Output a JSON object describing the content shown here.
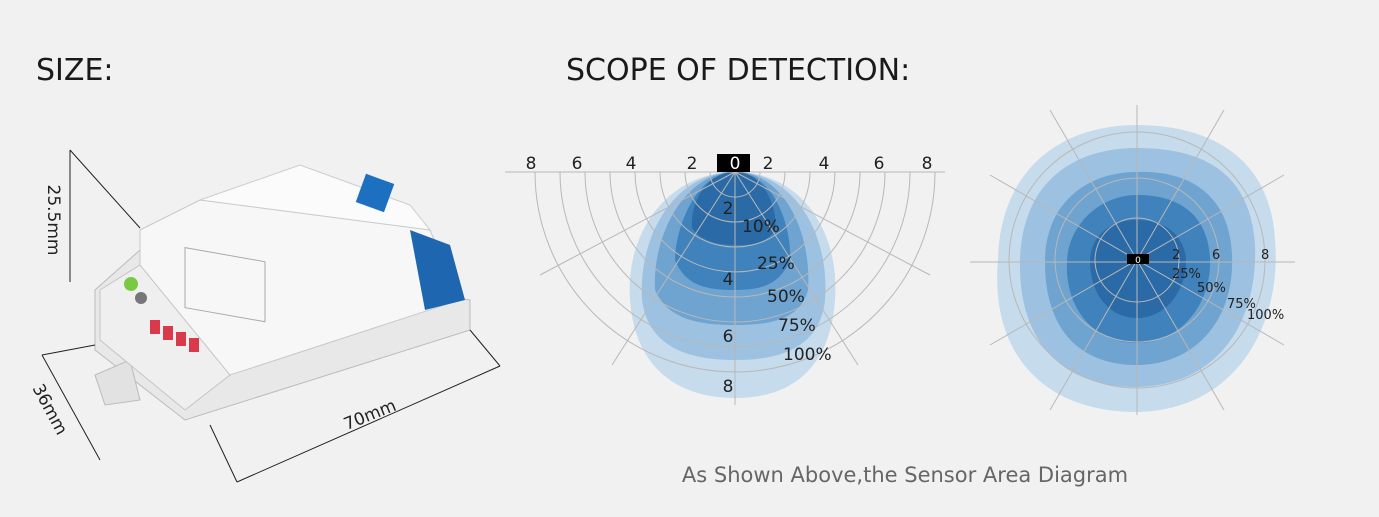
{
  "header": {
    "size_title": "SIZE:",
    "scope_title": "SCOPE OF DETECTION:"
  },
  "dimensions": {
    "height": "25.5mm",
    "width": "36mm",
    "length": "70mm"
  },
  "side_view": {
    "top_scale": [
      "8",
      "6",
      "4",
      "2",
      "0",
      "2",
      "4",
      "6",
      "8"
    ],
    "depth_scale": [
      "2",
      "4",
      "6",
      "8"
    ],
    "levels": [
      "10%",
      "25%",
      "50%",
      "75%",
      "100%"
    ]
  },
  "top_view": {
    "center": "0",
    "radius_scale": [
      "2",
      "6",
      "8"
    ],
    "levels": [
      "25%",
      "50%",
      "75%",
      "100%"
    ]
  },
  "caption": "As Shown Above,the Sensor Area Diagram"
}
